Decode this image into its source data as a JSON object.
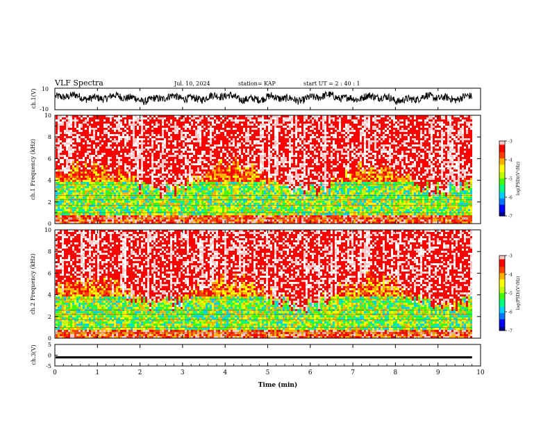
{
  "header": {
    "title": "VLF Spectra",
    "date": "Jul. 10, 2024",
    "station": "station= KAP",
    "start": "start UT =  2 : 40 : 1"
  },
  "colors": {
    "background": "#ffffff",
    "trace": "#000000",
    "spectrogram_palette": [
      "#00008b",
      "#0000ff",
      "#0078ff",
      "#00d0ff",
      "#00ff80",
      "#40ff00",
      "#c0ff00",
      "#ffff00",
      "#ffb000",
      "#ff4000",
      "#ff0000",
      "#ffc8c8",
      "#ffffff"
    ]
  },
  "chart_data": [
    {
      "type": "line",
      "panel": "ch1-waveform",
      "ylabel": "ch.1(V)",
      "ylim": [
        -10,
        10
      ],
      "ytick_labels": [
        "10",
        "-10"
      ],
      "xlim": [
        0,
        10
      ],
      "x_end": 9.8,
      "description_values": {
        "typical_range_V": [
          -5,
          8
        ],
        "mean_V": 1
      }
    },
    {
      "type": "heatmap",
      "panel": "ch1-spectrogram",
      "ylabel": "ch.1 Frequency (kHz)",
      "ylim": [
        0,
        10
      ],
      "ytick_labels": [
        "0",
        "2",
        "4",
        "6",
        "8",
        "10"
      ],
      "xlim": [
        0,
        10
      ],
      "x_end": 9.8,
      "colorbar": {
        "label": "log(PSD)(V²/Hz)",
        "range": [
          -7,
          -3
        ],
        "tick_labels": [
          "-3",
          "-4",
          "-5",
          "-6",
          "-7"
        ]
      },
      "bands_kHz": [
        0.5,
        1.0,
        1.7,
        2.2,
        2.6,
        3.6
      ]
    },
    {
      "type": "heatmap",
      "panel": "ch2-spectrogram",
      "ylabel": "ch.2 Frequency (kHz)",
      "ylim": [
        0,
        10
      ],
      "ytick_labels": [
        "0",
        "2",
        "4",
        "6",
        "8",
        "10"
      ],
      "xlim": [
        0,
        10
      ],
      "x_end": 9.8,
      "colorbar": {
        "label": "log(PSD)(V²/Hz)",
        "range": [
          -7,
          -3
        ],
        "tick_labels": [
          "-3",
          "-4",
          "-5",
          "-6",
          "-7"
        ]
      },
      "bands_kHz": [
        0.5,
        1.0,
        1.7,
        2.2,
        2.6,
        3.6
      ]
    },
    {
      "type": "line",
      "panel": "ch3-waveform",
      "ylabel": "ch.3(V)",
      "ylim": [
        -5,
        5
      ],
      "ytick_labels": [
        "5",
        "0",
        "-5"
      ],
      "xlim": [
        0,
        10
      ],
      "x_end": 9.8,
      "description_values": {
        "band_V": [
          -1.5,
          -0.5
        ]
      }
    }
  ],
  "x_axis": {
    "label": "Time (min)",
    "tick_labels": [
      "0",
      "1",
      "2",
      "3",
      "4",
      "5",
      "6",
      "7",
      "8",
      "9",
      "10"
    ]
  }
}
